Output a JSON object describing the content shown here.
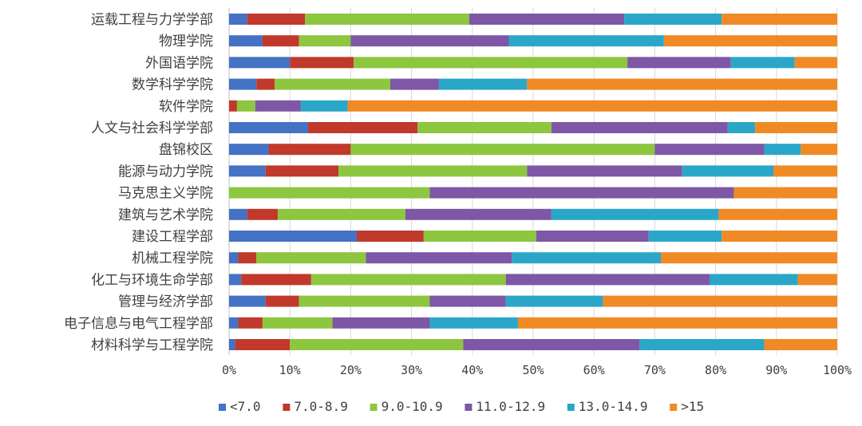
{
  "chart_data": {
    "type": "bar",
    "orientation": "horizontal",
    "stacked": "percent",
    "title": "",
    "xlabel": "",
    "ylabel": "",
    "xlim": [
      0,
      100
    ],
    "x_ticks": [
      "0%",
      "10%",
      "20%",
      "30%",
      "40%",
      "50%",
      "60%",
      "70%",
      "80%",
      "90%",
      "100%"
    ],
    "grid": true,
    "legend_position": "bottom",
    "categories": [
      "运载工程与力学学部",
      "物理学院",
      "外国语学院",
      "数学科学学院",
      "软件学院",
      "人文与社会科学学部",
      "盘锦校区",
      "能源与动力学院",
      "马克思主义学院",
      "建筑与艺术学院",
      "建设工程学部",
      "机械工程学院",
      "化工与环境生命学部",
      "管理与经济学部",
      "电子信息与电气工程学部",
      "材料科学与工程学院"
    ],
    "series": [
      {
        "name": "<7.0",
        "color": "#4472C4",
        "values": [
          3.0,
          5.5,
          10.0,
          4.5,
          0.0,
          13.0,
          6.5,
          6.0,
          0.0,
          3.0,
          21.0,
          1.5,
          2.0,
          6.0,
          1.5,
          1.0
        ]
      },
      {
        "name": "7.0-8.9",
        "color": "#C0392B",
        "values": [
          9.5,
          6.0,
          10.5,
          3.0,
          1.3,
          18.0,
          13.5,
          12.0,
          0.0,
          5.0,
          11.0,
          3.0,
          11.5,
          5.5,
          4.0,
          9.0
        ]
      },
      {
        "name": "9.0-10.9",
        "color": "#8DC63F",
        "values": [
          27.0,
          8.5,
          45.0,
          19.0,
          3.0,
          22.0,
          50.0,
          31.0,
          33.0,
          21.0,
          18.5,
          18.0,
          32.0,
          21.5,
          11.5,
          28.5
        ]
      },
      {
        "name": "11.0-12.9",
        "color": "#7E57A6",
        "values": [
          25.5,
          26.0,
          17.0,
          8.0,
          7.5,
          29.0,
          18.0,
          25.5,
          50.0,
          24.0,
          18.5,
          24.0,
          33.5,
          12.5,
          16.0,
          29.0
        ]
      },
      {
        "name": "13.0-14.9",
        "color": "#2AA7C8",
        "values": [
          16.0,
          25.5,
          10.5,
          14.5,
          7.7,
          4.5,
          6.0,
          15.0,
          0.0,
          27.5,
          12.0,
          24.5,
          14.5,
          16.0,
          14.5,
          20.5
        ]
      },
      {
        "name": ">15",
        "color": "#F08A24",
        "values": [
          19.0,
          28.5,
          7.0,
          51.0,
          80.5,
          13.5,
          6.0,
          10.5,
          17.0,
          19.5,
          19.0,
          29.0,
          6.5,
          38.5,
          52.5,
          12.0
        ]
      }
    ]
  }
}
